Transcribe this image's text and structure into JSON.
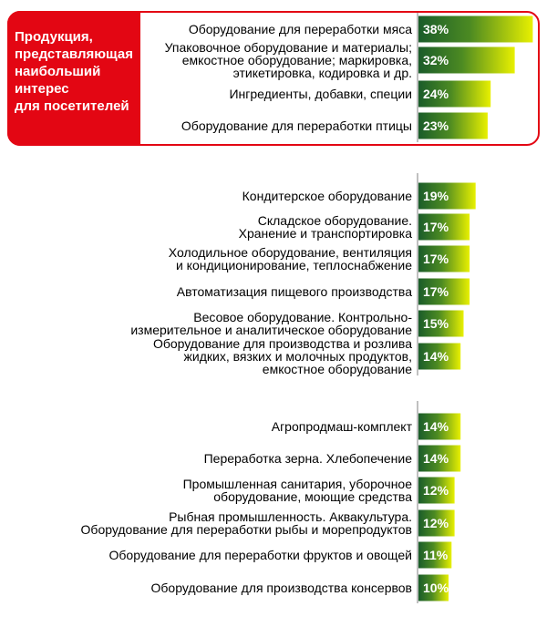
{
  "callout": {
    "text": "Продукция,\nпредставляющая\nнаибольший\nинтерес\nдля посетителей"
  },
  "colors": {
    "accent_red": "#e30613",
    "bar_dark": "#1a5c2a",
    "bar_light": "#e8f000",
    "label_text": "#000000",
    "value_text": "#ffffff"
  },
  "chart_data": [
    {
      "type": "bar",
      "orientation": "horizontal",
      "categories": [
        "Оборудование для переработки мяса",
        "Упаковочное оборудование и материалы;\nемкостное оборудование; маркировка,\nэтикетировка, кодировка и др.",
        "Ингредиенты, добавки, специи",
        "Оборудование для переработки птицы"
      ],
      "values": [
        38,
        32,
        24,
        23
      ],
      "data_labels": [
        "38%",
        "32%",
        "24%",
        "23%"
      ],
      "unit": "%"
    },
    {
      "type": "bar",
      "orientation": "horizontal",
      "categories": [
        "Кондитерское оборудование",
        "Складское оборудование.\nХранение и транспортировка",
        "Холодильное оборудование, вентиляция\nи кондиционирование, теплоснабжение",
        "Автоматизация пищевого производства",
        "Весовое оборудование. Контрольно-\nизмерительное и аналитическое оборудование",
        "Оборудование для производства и розлива\nжидких, вязких и молочных продуктов,\nемкостное оборудование"
      ],
      "values": [
        19,
        17,
        17,
        17,
        15,
        14
      ],
      "data_labels": [
        "19%",
        "17%",
        "17%",
        "17%",
        "15%",
        "14%"
      ],
      "unit": "%"
    },
    {
      "type": "bar",
      "orientation": "horizontal",
      "categories": [
        "Агропродмаш-комплект",
        "Переработка зерна. Хлебопечение",
        "Промышленная санитария, уборочное\nоборудование, моющие средства",
        "Рыбная промышленность. Аквакультура.\nОборудование для переработки рыбы и морепродуктов",
        "Оборудование для переработки фруктов и овощей",
        "Оборудование для производства консервов"
      ],
      "values": [
        14,
        14,
        12,
        12,
        11,
        10
      ],
      "data_labels": [
        "14%",
        "14%",
        "12%",
        "12%",
        "11%",
        "10%"
      ],
      "unit": "%"
    }
  ]
}
